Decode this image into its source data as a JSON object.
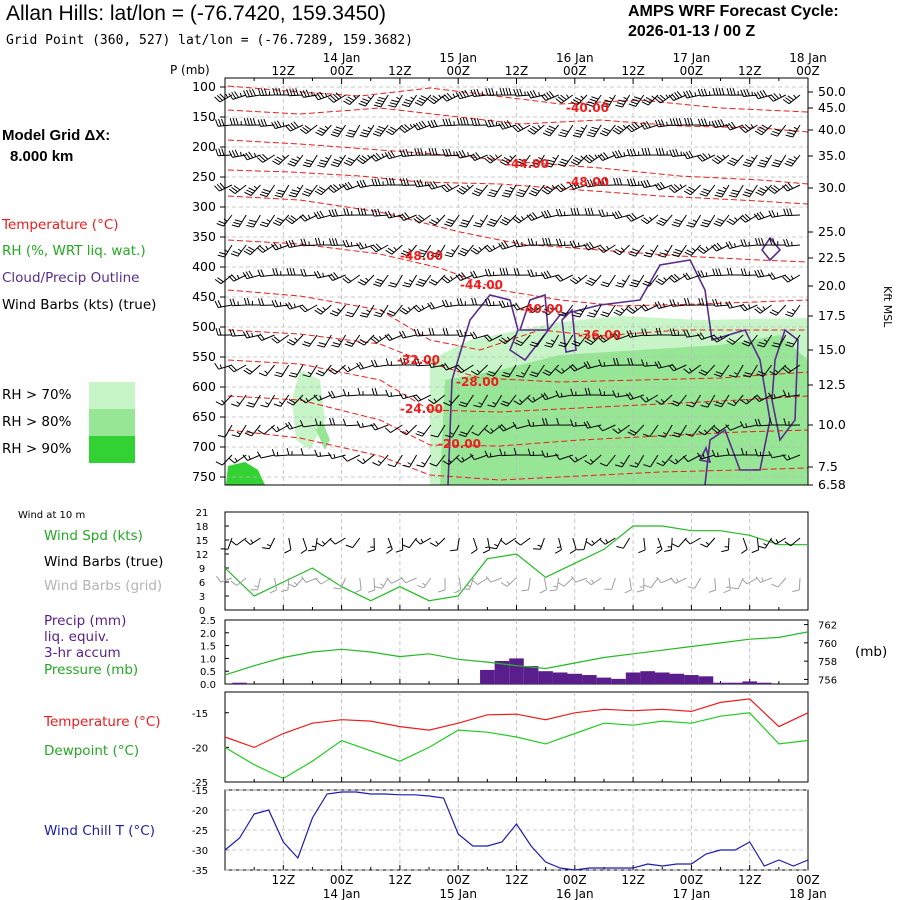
{
  "header": {
    "title": "Allan Hills:  lat/lon = (-76.7420, 159.3450)",
    "grid_point": "Grid Point (360, 527) lat/lon = (-76.7289, 159.3682)",
    "cycle_line1": "AMPS WRF Forecast Cycle:",
    "cycle_line2": "2026-01-13 / 00  Z",
    "model_grid_line1": "Model Grid ΔX:",
    "model_grid_line2": "8.000 km"
  },
  "legend": {
    "temperature": "Temperature (°C)",
    "rh": "RH (%, WRT liq. wat.)",
    "cloud": "Cloud/Precip Outline",
    "wind": "Wind Barbs (kts) (true)",
    "rh70": "RH > 70%",
    "rh80": "RH > 80%",
    "rh90": "RH > 90%"
  },
  "colors": {
    "temperature": "#ee1c1c",
    "rh70": "#c8f5c8",
    "rh80": "#96e696",
    "rh90": "#32d232",
    "cloud": "#5a2d8c",
    "wind_grid": "#a0a0a0",
    "pressure": "#22bb22",
    "precip": "#5a1e8c",
    "dewpoint": "#22cc22",
    "windchill": "#1c1cb0"
  },
  "time_axis": {
    "top_hours": [
      "12Z",
      "00Z",
      "12Z",
      "00Z",
      "12Z",
      "00Z",
      "12Z",
      "00Z",
      "12Z",
      "00Z"
    ],
    "dates": [
      "14 Jan",
      "15 Jan",
      "16 Jan",
      "17 Jan",
      "18 Jan"
    ],
    "bottom_hours": [
      "12Z",
      "00Z",
      "12Z",
      "00Z",
      "12Z",
      "00Z",
      "12Z",
      "00Z",
      "12Z",
      "00Z"
    ]
  },
  "chart_data": [
    {
      "type": "contour",
      "name": "time-height cross section",
      "ylabel": "P (mb)",
      "right_axis_label": "Kft MSL",
      "pressure_levels": [
        "100",
        "150",
        "200",
        "250",
        "300",
        "350",
        "400",
        "450",
        "500",
        "550",
        "600",
        "650",
        "700",
        "750"
      ],
      "height_labels_kft": [
        "50.0",
        "45.0",
        "40.0",
        "35.0",
        "30.0",
        "25.0",
        "22.5",
        "20.0",
        "17.5",
        "15.0",
        "12.5",
        "10.0",
        "7.5",
        "6.58"
      ],
      "temperature_contour_labels": [
        "-40.00",
        "-44.00",
        "-48.00",
        "-48.00",
        "-44.00",
        "-40.00",
        "-36.00",
        "-32.00",
        "-28.00",
        "-24.00",
        "-20.00"
      ]
    },
    {
      "type": "line",
      "name": "10 m wind speed",
      "title": "Wind at 10 m",
      "series_labels": [
        "Wind Spd (kts)",
        "Wind Barbs (true)",
        "Wind Barbs (grid)"
      ],
      "yticks": [
        "21",
        "18",
        "15",
        "12",
        "9",
        "6",
        "3",
        "0"
      ],
      "ylim": [
        0,
        21
      ],
      "x_hours": [
        0,
        6,
        12,
        18,
        24,
        30,
        36,
        42,
        48,
        54,
        60,
        66,
        72,
        78,
        84,
        90,
        96,
        102,
        108,
        114,
        120
      ],
      "values": [
        9,
        3,
        6,
        9,
        5,
        2,
        5,
        2,
        3,
        11,
        12,
        7,
        10,
        13,
        18,
        18,
        17,
        17,
        16,
        14,
        14
      ]
    },
    {
      "type": "bar",
      "name": "precipitation and pressure",
      "series_labels": [
        "Precip (mm)",
        "liq. equiv.",
        "3-hr accum",
        "Pressure (mb)"
      ],
      "left_yticks": [
        "2.5",
        "2.0",
        "1.5",
        "1.0",
        "0.5",
        "0.0"
      ],
      "right_yticks": [
        "762",
        "760",
        "758",
        "756"
      ],
      "right_ylabel": "(mb)",
      "ylim_precip": [
        0,
        2.5
      ],
      "ylim_pressure": [
        755.5,
        762.5
      ],
      "precip_hours": [
        3,
        54,
        57,
        60,
        63,
        66,
        69,
        72,
        75,
        78,
        81,
        84,
        87,
        90,
        93,
        96,
        99,
        102,
        105,
        108,
        111
      ],
      "precip_values": [
        0.05,
        0.55,
        0.9,
        1.0,
        0.7,
        0.5,
        0.45,
        0.4,
        0.35,
        0.25,
        0.2,
        0.45,
        0.5,
        0.45,
        0.4,
        0.35,
        0.3,
        0.05,
        0.05,
        0.1,
        0.05
      ],
      "pressure_hours": [
        0,
        6,
        12,
        18,
        24,
        30,
        36,
        42,
        48,
        54,
        60,
        66,
        72,
        78,
        84,
        90,
        96,
        102,
        108,
        114,
        120
      ],
      "pressure_values": [
        756.5,
        757.5,
        758.4,
        759.0,
        759.3,
        759.0,
        758.5,
        758.8,
        758.2,
        757.9,
        757.5,
        757.2,
        757.8,
        758.4,
        758.8,
        759.2,
        759.6,
        760.0,
        760.4,
        760.6,
        761.2
      ]
    },
    {
      "type": "line",
      "name": "temperature and dewpoint",
      "series_labels": [
        "Temperature (°C)",
        "Dewpoint (°C)"
      ],
      "yticks": [
        "-15",
        "-20",
        "-25"
      ],
      "ylim": [
        -25,
        -12
      ],
      "x_hours": [
        0,
        6,
        12,
        18,
        24,
        30,
        36,
        42,
        48,
        54,
        60,
        66,
        72,
        78,
        84,
        90,
        96,
        102,
        108,
        114,
        120
      ],
      "series": [
        {
          "name": "Temperature",
          "values": [
            -18.5,
            -20.0,
            -18.0,
            -16.5,
            -16.0,
            -16.2,
            -17.0,
            -17.5,
            -16.5,
            -15.3,
            -15.2,
            -16.0,
            -15.0,
            -14.5,
            -14.7,
            -14.5,
            -14.8,
            -13.5,
            -13.0,
            -17.0,
            -15.0
          ]
        },
        {
          "name": "Dewpoint",
          "values": [
            -20.0,
            -22.5,
            -24.5,
            -22.0,
            -19.0,
            -20.5,
            -22.0,
            -20.0,
            -17.5,
            -17.8,
            -18.5,
            -19.5,
            -18.0,
            -16.5,
            -16.8,
            -16.2,
            -16.5,
            -15.5,
            -15.0,
            -19.5,
            -19.0
          ]
        }
      ]
    },
    {
      "type": "line",
      "name": "wind chill temperature",
      "series_labels": [
        "Wind Chill T (°C)"
      ],
      "yticks": [
        "-15",
        "-20",
        "-25",
        "-30",
        "-35"
      ],
      "ylim": [
        -35,
        -15
      ],
      "x_hours": [
        0,
        3,
        6,
        9,
        12,
        15,
        18,
        21,
        24,
        27,
        30,
        33,
        36,
        39,
        42,
        45,
        48,
        51,
        54,
        57,
        60,
        63,
        66,
        69,
        72,
        75,
        78,
        81,
        84,
        87,
        90,
        93,
        96,
        99,
        102,
        105,
        108,
        111,
        114,
        117,
        120
      ],
      "values": [
        -30,
        -27,
        -21,
        -20,
        -28,
        -32,
        -22,
        -16,
        -15.5,
        -15.5,
        -16,
        -16,
        -16.2,
        -16.2,
        -16.5,
        -17,
        -26,
        -29,
        -29,
        -28,
        -23.5,
        -29,
        -33,
        -34.5,
        -35,
        -34.5,
        -34.5,
        -34.5,
        -34.5,
        -33.5,
        -34,
        -33.5,
        -33.5,
        -31,
        -30,
        -30,
        -28,
        -34,
        -32.5,
        -34,
        -32.5
      ]
    }
  ]
}
